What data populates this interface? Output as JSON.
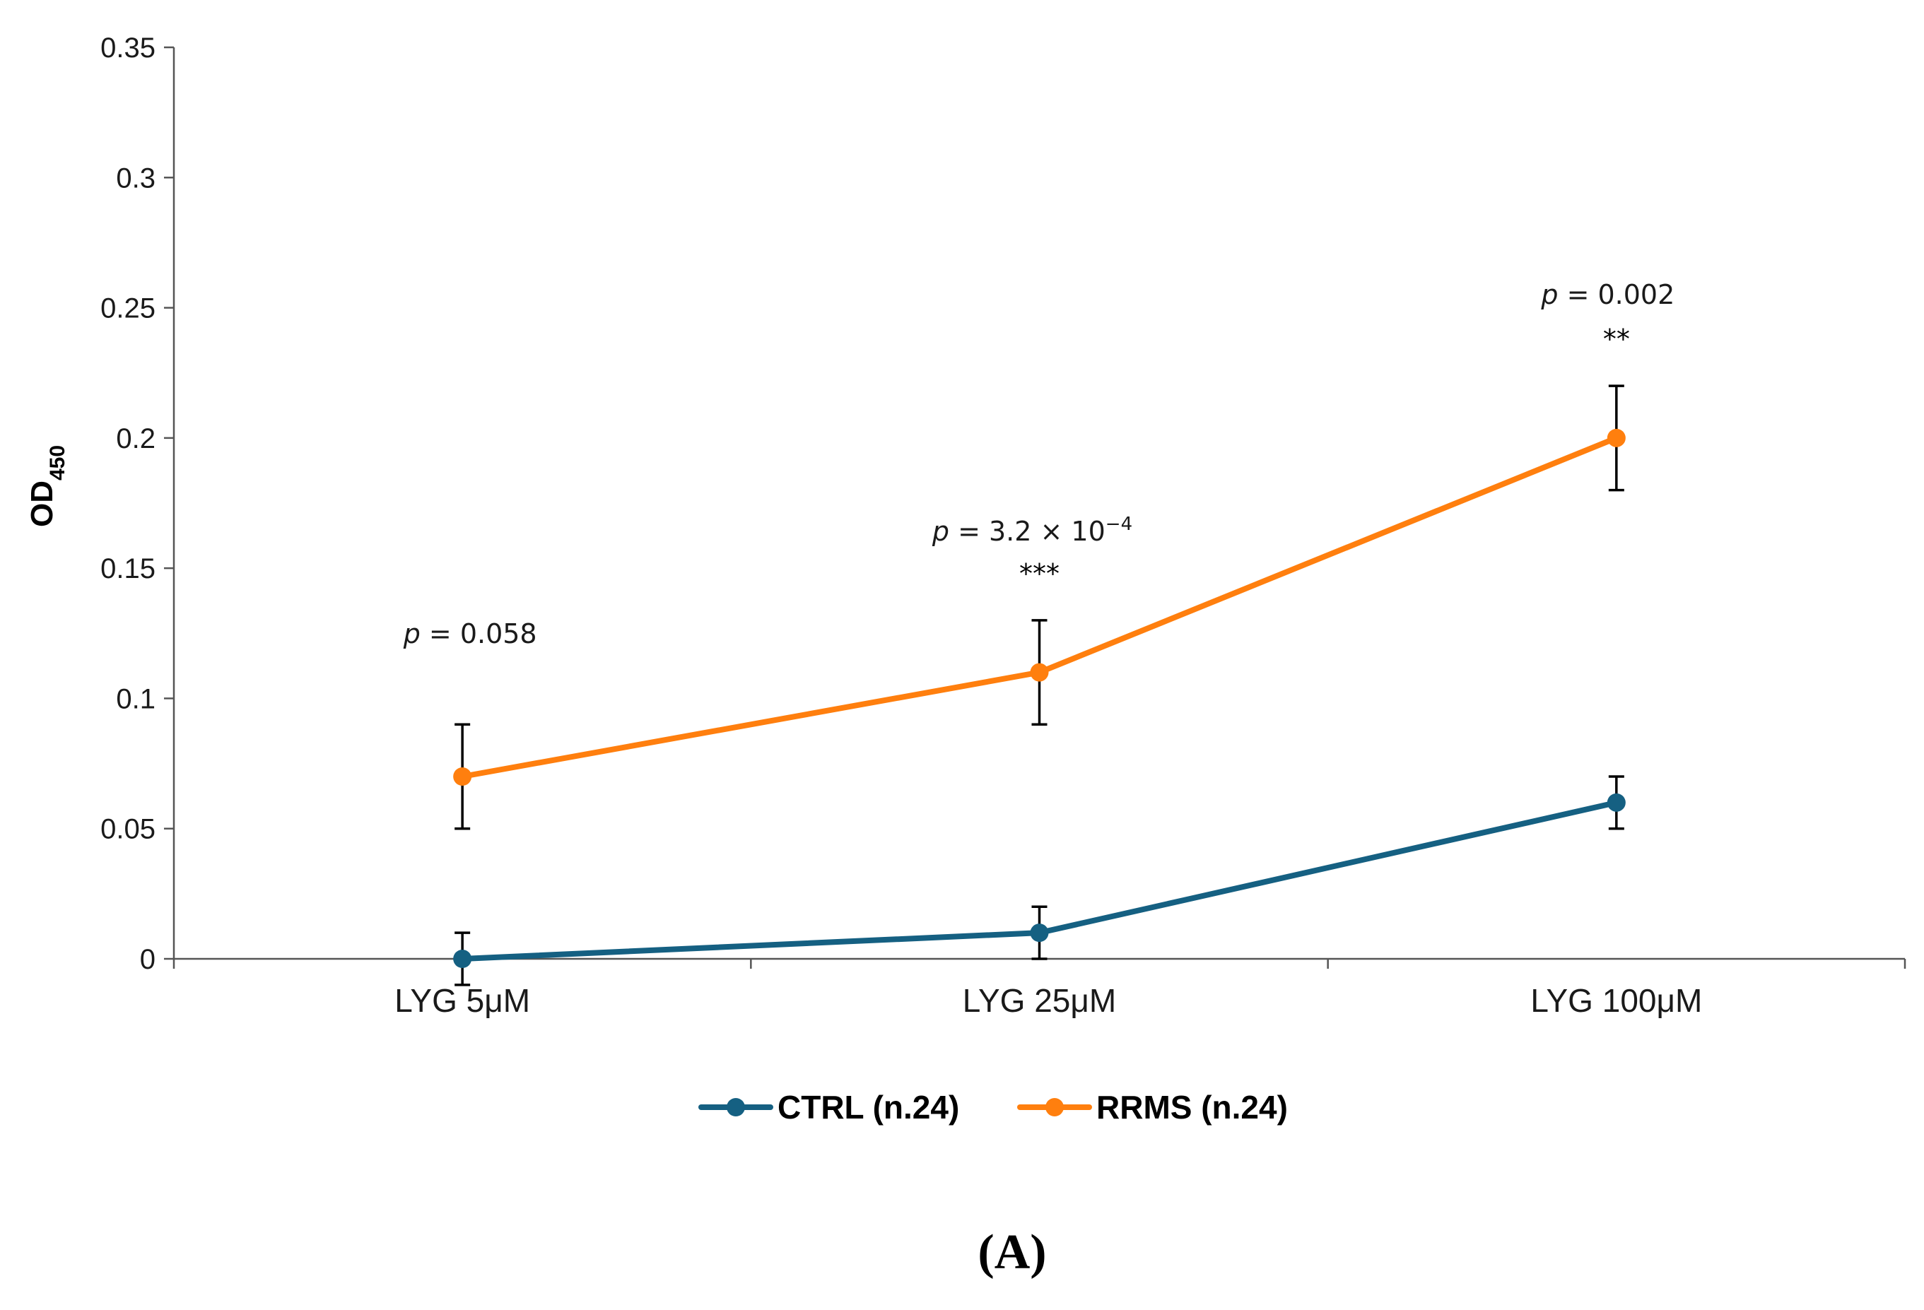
{
  "chart_data": {
    "type": "line",
    "title": "",
    "xlabel": "",
    "ylabel_main": "OD",
    "ylabel_sub": "450",
    "ylim": [
      0,
      0.35
    ],
    "yticks": [
      0,
      0.05,
      0.1,
      0.15,
      0.2,
      0.25,
      0.3,
      0.35
    ],
    "ytick_labels": [
      "0",
      "0.05",
      "0.1",
      "0.15",
      "0.2",
      "0.25",
      "0.3",
      "0.35"
    ],
    "categories": [
      "LYG 5μM",
      "LYG 25μM",
      "LYG 100μM"
    ],
    "series": [
      {
        "name": "CTRL (n.24)",
        "color": "#156082",
        "values": [
          0.0,
          0.01,
          0.06
        ],
        "errors": [
          0.01,
          0.01,
          0.01
        ]
      },
      {
        "name": "RRMS (n.24)",
        "color": "#FF7F0E",
        "values": [
          0.07,
          0.11,
          0.2
        ],
        "errors": [
          0.02,
          0.02,
          0.02
        ]
      }
    ],
    "annotations": [
      {
        "category_index": 0,
        "p_label": "p",
        "p_text": " = 0.058",
        "p_exponent": "",
        "stars": ""
      },
      {
        "category_index": 1,
        "p_label": "p",
        "p_text": " = 3.2 × 10",
        "p_exponent": "−4",
        "stars": "***"
      },
      {
        "category_index": 2,
        "p_label": "p",
        "p_text": " = 0.002",
        "p_exponent": "",
        "stars": "**"
      }
    ],
    "legend_position": "bottom-center",
    "panel_label": "(A)"
  }
}
